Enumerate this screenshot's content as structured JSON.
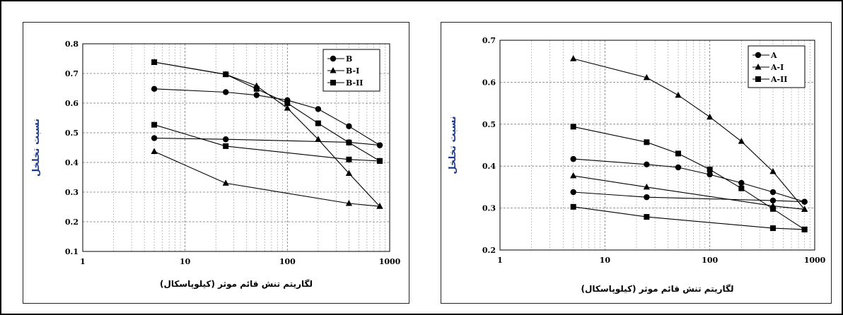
{
  "chart_data": [
    {
      "type": "line",
      "title": "",
      "xlabel": "لگاریتم تنش قائم موثر (کیلوپاسکال)",
      "ylabel": "نسبت تخلخل",
      "ylabel_color": "#1f3b8a",
      "x_scale": "log",
      "xlim": [
        1,
        1000
      ],
      "ylim": [
        0.1,
        0.8
      ],
      "x_ticks": [
        1,
        10,
        100,
        1000
      ],
      "x_tick_labels": [
        "1",
        "10",
        "100",
        "1000"
      ],
      "y_ticks": [
        0.1,
        0.2,
        0.3,
        0.4,
        0.5,
        0.6,
        0.7,
        0.8
      ],
      "y_tick_labels": [
        "0.1",
        "0.2",
        "0.3",
        "0.4",
        "0.5",
        "0.6",
        "0.7",
        "0.8"
      ],
      "grid": true,
      "legend_position": "top-right",
      "series": [
        {
          "name": "B",
          "marker": "circle",
          "x": [
            5,
            25,
            50,
            100,
            200,
            400,
            800
          ],
          "y": [
            0.648,
            0.637,
            0.627,
            0.61,
            0.58,
            0.522,
            0.458
          ]
        },
        {
          "name": "B",
          "marker": "circle",
          "x": [
            5,
            25,
            400,
            800
          ],
          "y": [
            0.482,
            0.478,
            0.468,
            0.458
          ]
        },
        {
          "name": "B-I",
          "marker": "triangle",
          "x": [
            5,
            25,
            50,
            100,
            200,
            400,
            800
          ],
          "y": [
            0.738,
            0.697,
            0.658,
            0.583,
            0.478,
            0.363,
            0.252
          ]
        },
        {
          "name": "B-I",
          "marker": "triangle",
          "x": [
            5,
            25,
            400,
            800
          ],
          "y": [
            0.437,
            0.33,
            0.262,
            0.252
          ]
        },
        {
          "name": "B-II",
          "marker": "square",
          "x": [
            5,
            25,
            50,
            100,
            200,
            400,
            800
          ],
          "y": [
            0.738,
            0.697,
            0.648,
            0.6,
            0.532,
            0.467,
            0.405
          ]
        },
        {
          "name": "B-II",
          "marker": "square",
          "x": [
            5,
            25,
            400,
            800
          ],
          "y": [
            0.527,
            0.455,
            0.41,
            0.405
          ]
        }
      ]
    },
    {
      "type": "line",
      "title": "",
      "xlabel": "لگاریتم تنش قائم موثر (کیلوپاسکال)",
      "ylabel": "نسبت تخلخل",
      "ylabel_color": "#1f3b8a",
      "x_scale": "log",
      "xlim": [
        1,
        1000
      ],
      "ylim": [
        0.2,
        0.7
      ],
      "x_ticks": [
        1,
        10,
        100,
        1000
      ],
      "x_tick_labels": [
        "1",
        "10",
        "100",
        "1000"
      ],
      "y_ticks": [
        0.2,
        0.3,
        0.4,
        0.5,
        0.6,
        0.7
      ],
      "y_tick_labels": [
        "0.2",
        "0.3",
        "0.4",
        "0.5",
        "0.6",
        "0.7"
      ],
      "grid": true,
      "legend_position": "top-right",
      "series": [
        {
          "name": "A",
          "marker": "circle",
          "x": [
            5,
            25,
            50,
            100,
            200,
            400,
            800
          ],
          "y": [
            0.417,
            0.404,
            0.397,
            0.38,
            0.36,
            0.338,
            0.315
          ]
        },
        {
          "name": "A",
          "marker": "circle",
          "x": [
            5,
            25,
            400,
            800
          ],
          "y": [
            0.338,
            0.326,
            0.318,
            0.315
          ]
        },
        {
          "name": "A-I",
          "marker": "triangle",
          "x": [
            5,
            25,
            50,
            100,
            200,
            400,
            800
          ],
          "y": [
            0.656,
            0.611,
            0.569,
            0.517,
            0.459,
            0.387,
            0.297
          ]
        },
        {
          "name": "A-I",
          "marker": "triangle",
          "x": [
            5,
            25,
            400,
            800
          ],
          "y": [
            0.377,
            0.35,
            0.305,
            0.297
          ]
        },
        {
          "name": "A-II",
          "marker": "square",
          "x": [
            5,
            25,
            50,
            100,
            200,
            400,
            800
          ],
          "y": [
            0.494,
            0.457,
            0.43,
            0.392,
            0.347,
            0.298,
            0.249
          ]
        },
        {
          "name": "A-II",
          "marker": "square",
          "x": [
            5,
            25,
            400,
            800
          ],
          "y": [
            0.303,
            0.279,
            0.252,
            0.249
          ]
        }
      ]
    }
  ]
}
